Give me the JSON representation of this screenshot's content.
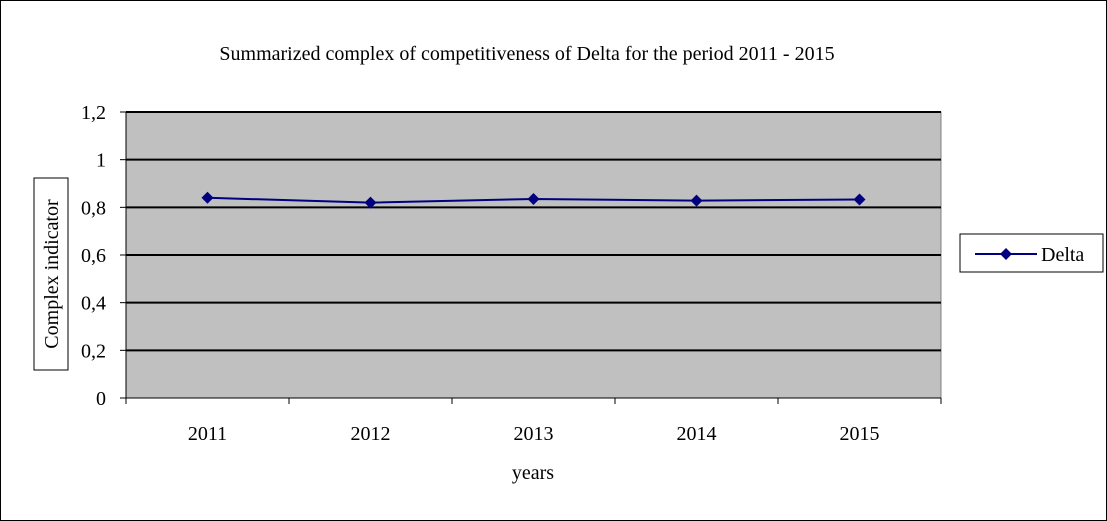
{
  "chart_data": {
    "type": "line",
    "title": "Summarized complex of competitiveness of  Delta for the period 2011 - 2015",
    "xlabel": "years",
    "ylabel": "Complex indicator",
    "categories": [
      "2011",
      "2012",
      "2013",
      "2014",
      "2015"
    ],
    "series": [
      {
        "name": "Delta",
        "values": [
          0.84,
          0.82,
          0.835,
          0.828,
          0.833
        ],
        "color": "#000080"
      }
    ],
    "ylim": [
      0,
      1.2
    ],
    "yticks": [
      0,
      0.2,
      0.4,
      0.6,
      0.8,
      1,
      1.2
    ],
    "ytick_labels": [
      "0",
      "0,2",
      "0,4",
      "0,6",
      "0,8",
      "1",
      "1,2"
    ],
    "grid": true,
    "legend_position": "right",
    "plot_background": "#c0c0c0"
  }
}
